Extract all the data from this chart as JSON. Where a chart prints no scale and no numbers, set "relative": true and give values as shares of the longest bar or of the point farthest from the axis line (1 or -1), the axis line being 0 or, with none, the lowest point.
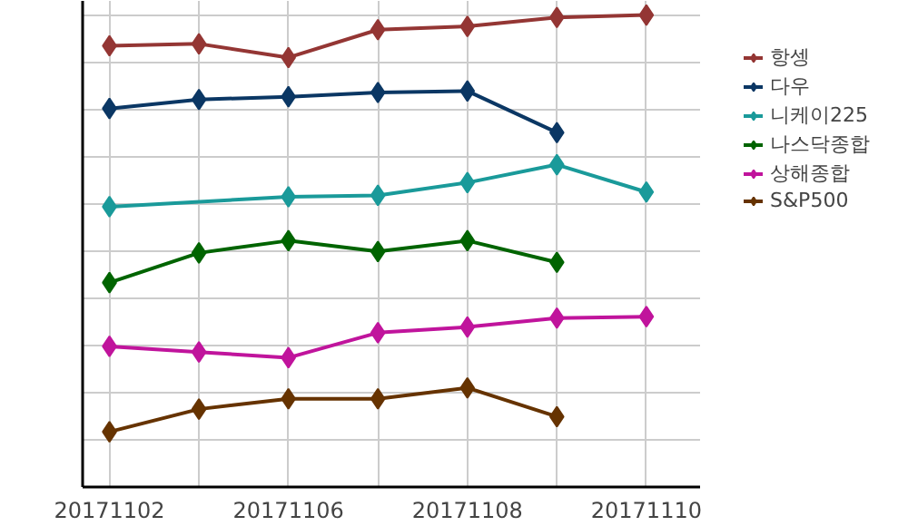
{
  "chart_data": {
    "type": "line",
    "relative": true,
    "marker": "diamond",
    "line_style": "solid",
    "grid": true,
    "legend": "right",
    "categories": [
      "20171102",
      null,
      "20171106",
      null,
      "20171108",
      null,
      "20171110"
    ],
    "series": [
      {
        "name": "항셍",
        "color": "#943634",
        "values": [
          0.935,
          0.939,
          0.91,
          0.969,
          0.976,
          0.995,
          1
        ]
      },
      {
        "name": "다우",
        "color": "#0b3764",
        "values": [
          0.802,
          0.821,
          0.827,
          0.836,
          0.839,
          0.751,
          null
        ]
      },
      {
        "name": "니케이225",
        "color": "#1a9a9a",
        "values": [
          0.594,
          null,
          0.615,
          0.618,
          0.645,
          0.683,
          0.625
        ]
      },
      {
        "name": "나스닥종합",
        "color": "#006400",
        "values": [
          0.433,
          0.496,
          0.522,
          0.499,
          0.522,
          0.476,
          null
        ]
      },
      {
        "name": "상해종합",
        "color": "#c0149c",
        "values": [
          0.298,
          0.286,
          0.274,
          0.327,
          0.339,
          0.358,
          0.361
        ]
      },
      {
        "name": "S&P500",
        "color": "#663300",
        "values": [
          0.117,
          0.165,
          0.187,
          0.187,
          0.21,
          0.149,
          null
        ]
      }
    ]
  }
}
